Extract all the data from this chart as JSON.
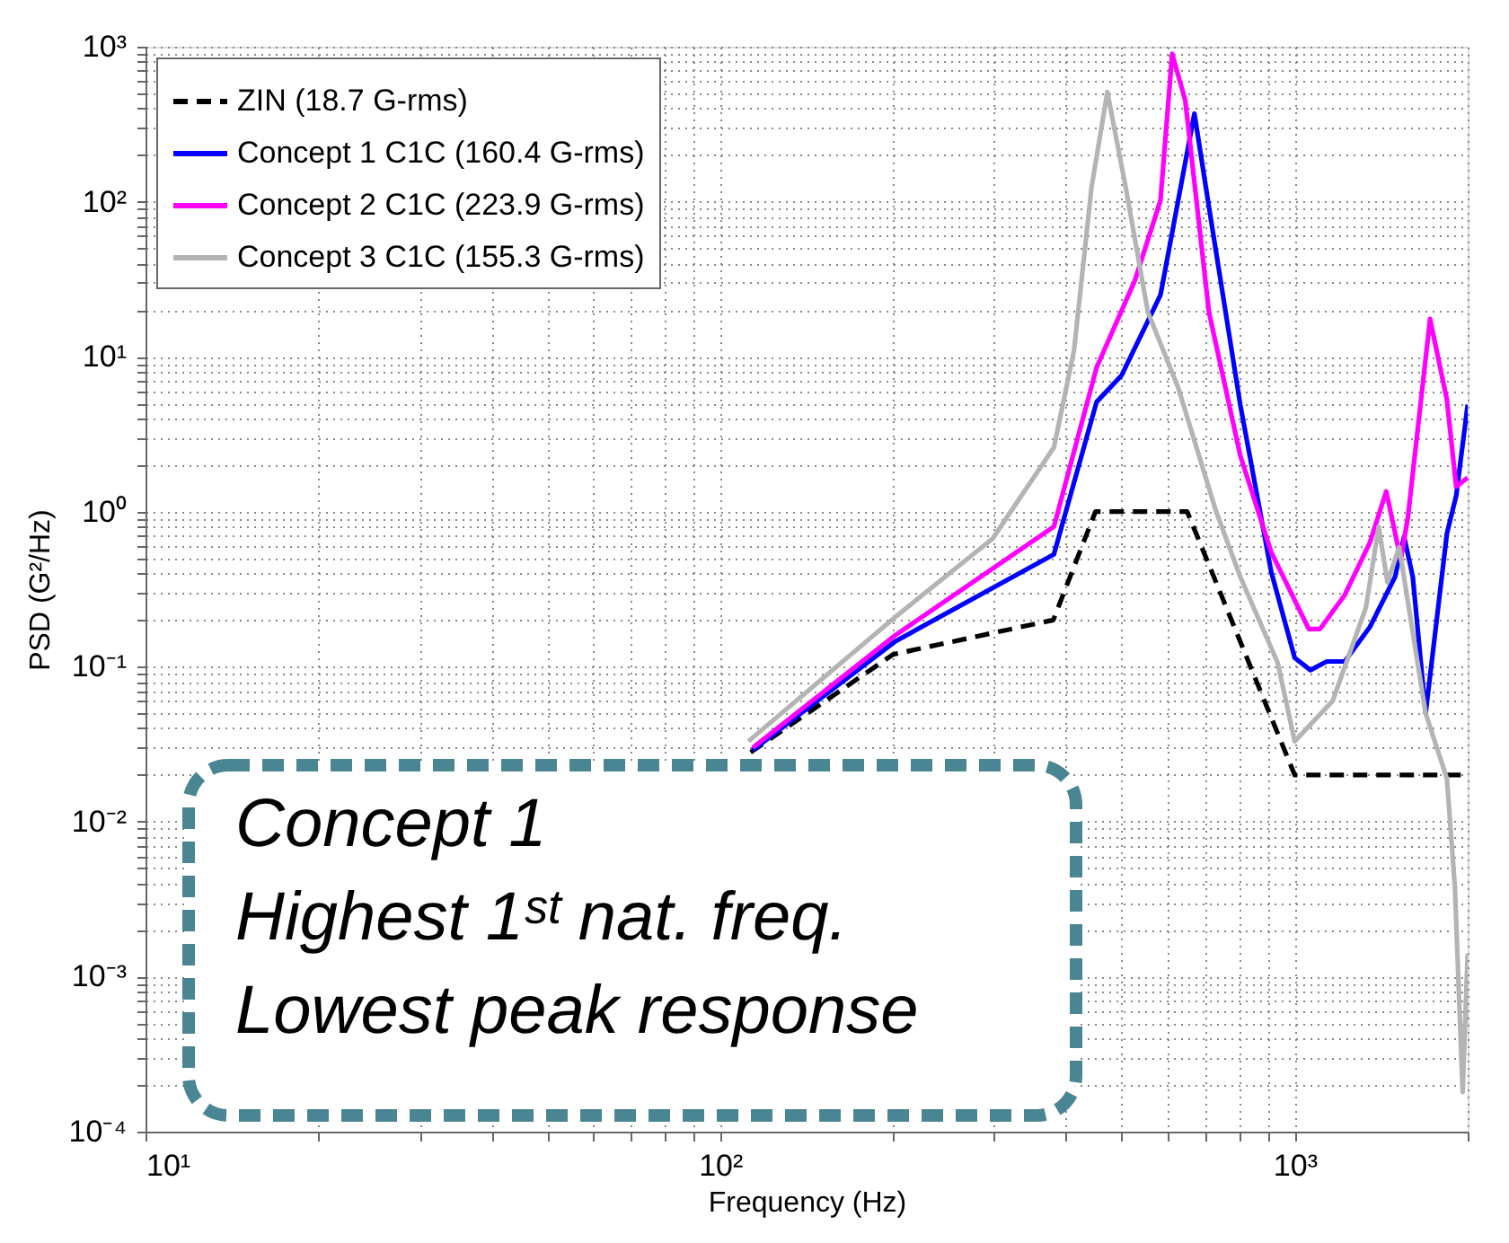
{
  "chart_data": {
    "type": "line",
    "xlabel": "Frequency (Hz)",
    "ylabel": "PSD (G²/Hz)",
    "log": "xy",
    "grid": true,
    "legend": "top left",
    "xlim": [
      10,
      2000
    ],
    "ylim": [
      0.0001,
      1000
    ],
    "xticks": [
      {
        "value": 10,
        "label": "10¹"
      },
      {
        "value": 20,
        "label": null
      },
      {
        "value": 30,
        "label": null
      },
      {
        "value": 40,
        "label": null
      },
      {
        "value": 50,
        "label": null
      },
      {
        "value": 60,
        "label": null
      },
      {
        "value": 70,
        "label": null
      },
      {
        "value": 80,
        "label": null
      },
      {
        "value": 90,
        "label": null
      },
      {
        "value": 100,
        "label": "10²"
      },
      {
        "value": 200,
        "label": null
      },
      {
        "value": 300,
        "label": null
      },
      {
        "value": 400,
        "label": null
      },
      {
        "value": 500,
        "label": null
      },
      {
        "value": 600,
        "label": null
      },
      {
        "value": 700,
        "label": null
      },
      {
        "value": 800,
        "label": null
      },
      {
        "value": 900,
        "label": null
      },
      {
        "value": 1000,
        "label": "10³"
      },
      {
        "value": 2000,
        "label": null
      }
    ],
    "yticks": [
      {
        "value": 0.0001,
        "label": "10⁻⁴"
      },
      {
        "value": 0.0002,
        "label": null
      },
      {
        "value": 0.0003,
        "label": null
      },
      {
        "value": 0.0004,
        "label": null
      },
      {
        "value": 0.0005,
        "label": null
      },
      {
        "value": 0.0006,
        "label": null
      },
      {
        "value": 0.0007,
        "label": null
      },
      {
        "value": 0.0008,
        "label": null
      },
      {
        "value": 0.0009,
        "label": null
      },
      {
        "value": 0.001,
        "label": "10⁻³"
      },
      {
        "value": 0.002,
        "label": null
      },
      {
        "value": 0.003,
        "label": null
      },
      {
        "value": 0.004,
        "label": null
      },
      {
        "value": 0.005,
        "label": null
      },
      {
        "value": 0.006,
        "label": null
      },
      {
        "value": 0.007,
        "label": null
      },
      {
        "value": 0.008,
        "label": null
      },
      {
        "value": 0.009,
        "label": null
      },
      {
        "value": 0.01,
        "label": "10⁻²"
      },
      {
        "value": 0.02,
        "label": null
      },
      {
        "value": 0.03,
        "label": null
      },
      {
        "value": 0.04,
        "label": null
      },
      {
        "value": 0.05,
        "label": null
      },
      {
        "value": 0.06,
        "label": null
      },
      {
        "value": 0.07,
        "label": null
      },
      {
        "value": 0.08,
        "label": null
      },
      {
        "value": 0.09,
        "label": null
      },
      {
        "value": 0.1,
        "label": "10⁻¹"
      },
      {
        "value": 0.2,
        "label": null
      },
      {
        "value": 0.3,
        "label": null
      },
      {
        "value": 0.4,
        "label": null
      },
      {
        "value": 0.5,
        "label": null
      },
      {
        "value": 0.6,
        "label": null
      },
      {
        "value": 0.7,
        "label": null
      },
      {
        "value": 0.8,
        "label": null
      },
      {
        "value": 0.9,
        "label": null
      },
      {
        "value": 1,
        "label": "10⁰"
      },
      {
        "value": 2,
        "label": null
      },
      {
        "value": 3,
        "label": null
      },
      {
        "value": 4,
        "label": null
      },
      {
        "value": 5,
        "label": null
      },
      {
        "value": 6,
        "label": null
      },
      {
        "value": 7,
        "label": null
      },
      {
        "value": 8,
        "label": null
      },
      {
        "value": 9,
        "label": null
      },
      {
        "value": 10,
        "label": "10¹"
      },
      {
        "value": 20,
        "label": null
      },
      {
        "value": 30,
        "label": null
      },
      {
        "value": 40,
        "label": null
      },
      {
        "value": 50,
        "label": null
      },
      {
        "value": 60,
        "label": null
      },
      {
        "value": 70,
        "label": null
      },
      {
        "value": 80,
        "label": null
      },
      {
        "value": 90,
        "label": null
      },
      {
        "value": 100,
        "label": "10²"
      },
      {
        "value": 200,
        "label": null
      },
      {
        "value": 300,
        "label": null
      },
      {
        "value": 400,
        "label": null
      },
      {
        "value": 500,
        "label": null
      },
      {
        "value": 600,
        "label": null
      },
      {
        "value": 700,
        "label": null
      },
      {
        "value": 800,
        "label": null
      },
      {
        "value": 900,
        "label": null
      },
      {
        "value": 1000,
        "label": "10³"
      }
    ],
    "series": [
      {
        "name": "ZIN (18.7 G-rms)",
        "color": "#000000",
        "line_style": "dashed",
        "x": [
          113,
          200,
          380,
          450,
          650,
          1000,
          2000
        ],
        "values": [
          0.028,
          0.12,
          0.2,
          1.0,
          1.0,
          0.02,
          0.02
        ]
      },
      {
        "name": "Concept 1 C1C (160.4 G-rms)",
        "color": "#0000ff",
        "line_style": "solid",
        "x": [
          114,
          202,
          381,
          452,
          500,
          584,
          669,
          709,
          804,
          910,
          1000,
          1065,
          1137,
          1222,
          1351,
          1495,
          1550,
          1605,
          1690,
          1840,
          1910,
          2000
        ],
        "values": [
          0.029,
          0.146,
          0.53,
          5.1,
          7.6,
          25,
          370,
          93,
          4.9,
          0.41,
          0.114,
          0.095,
          0.108,
          0.108,
          0.18,
          0.38,
          0.69,
          0.38,
          0.05,
          0.72,
          1.27,
          4.9
        ]
      },
      {
        "name": "Concept 2 C1C (223.9 G-rms)",
        "color": "#ff00ff",
        "line_style": "solid",
        "x": [
          114,
          202,
          381,
          452,
          527,
          584,
          612,
          645,
          709,
          804,
          910,
          1058,
          1107,
          1222,
          1351,
          1443,
          1530,
          1574,
          1720,
          1840,
          1910,
          2000
        ],
        "values": [
          0.03,
          0.16,
          0.8,
          8.5,
          31,
          102,
          900,
          450,
          19.5,
          2.3,
          0.55,
          0.175,
          0.175,
          0.29,
          0.63,
          1.35,
          0.49,
          0.92,
          17.5,
          5.3,
          1.45,
          1.66
        ]
      },
      {
        "name": "Concept 3 C1C (155.3 G-rms)",
        "color": "#b4b4b4",
        "line_style": "solid",
        "x": [
          112,
          202,
          298,
          381,
          413,
          443,
          472,
          508,
          555,
          627,
          730,
          804,
          934,
          1000,
          1164,
          1330,
          1400,
          1450,
          1520,
          1690,
          1840,
          1900,
          1960,
          2000
        ],
        "values": [
          0.033,
          0.21,
          0.67,
          2.6,
          11,
          124,
          510,
          124,
          19.5,
          6.3,
          1.0,
          0.38,
          0.106,
          0.033,
          0.06,
          0.24,
          0.8,
          0.35,
          0.59,
          0.05,
          0.019,
          0.0038,
          0.00018,
          0.0014
        ]
      }
    ],
    "annotations": [
      "Concept 1\nHighest 1ˢᵗ nat. freq.\nLowest peak response"
    ]
  }
}
